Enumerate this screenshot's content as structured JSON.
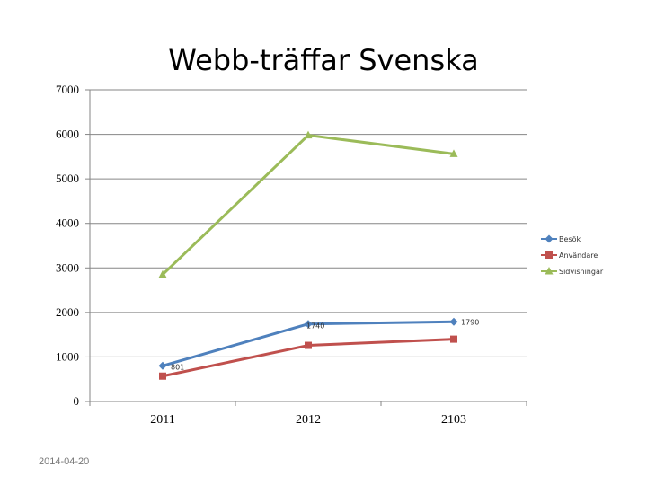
{
  "footer_date": "2014-04-20",
  "chart_data": {
    "type": "line",
    "title": "Webb-träffar Svenska",
    "xlabel": "",
    "ylabel": "",
    "categories": [
      "2011",
      "2012",
      "2103"
    ],
    "ylim": [
      0,
      7000
    ],
    "yticks": [
      0,
      1000,
      2000,
      3000,
      4000,
      5000,
      6000,
      7000
    ],
    "grid": true,
    "legend_position": "right",
    "series": [
      {
        "name": "Besök",
        "values": [
          801,
          1740,
          1790
        ],
        "color": "#4F81BD",
        "marker": "diamond",
        "data_labels": [
          "801",
          "1740",
          "1790"
        ]
      },
      {
        "name": "Användare",
        "values": [
          570,
          1260,
          1400
        ],
        "color": "#C0504D",
        "marker": "square",
        "data_labels": [
          "",
          "",
          ""
        ]
      },
      {
        "name": "Sidvisningar",
        "values": [
          2850,
          5980,
          5560
        ],
        "color": "#9BBB59",
        "marker": "triangle",
        "data_labels": [
          "",
          "",
          ""
        ]
      }
    ]
  }
}
